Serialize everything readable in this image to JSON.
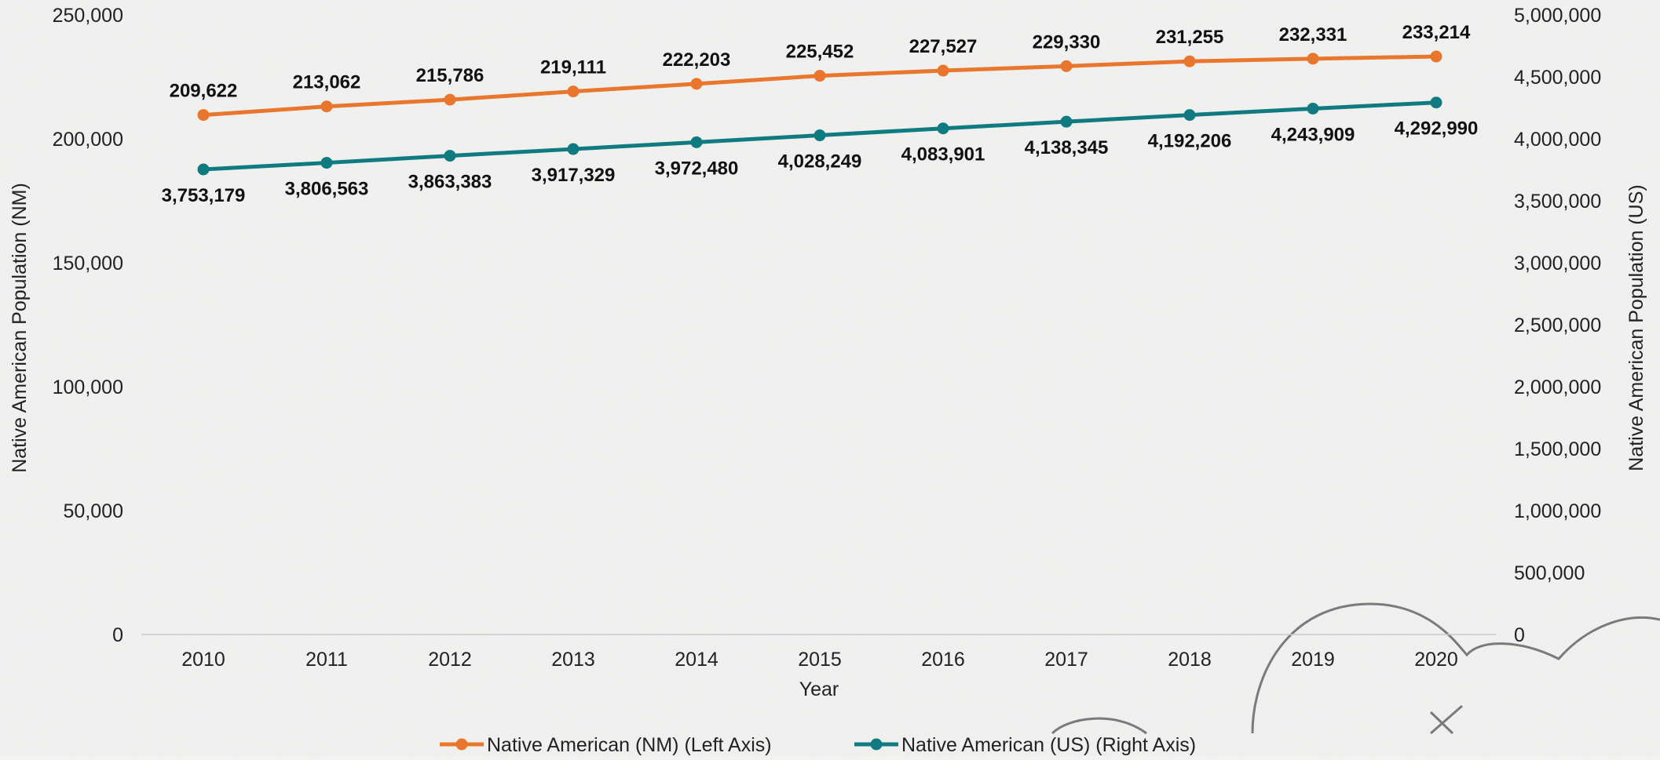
{
  "chart_data": {
    "type": "line",
    "x": [
      "2010",
      "2011",
      "2012",
      "2013",
      "2014",
      "2015",
      "2016",
      "2017",
      "2018",
      "2019",
      "2020"
    ],
    "xlabel": "Year",
    "ylabel_left": "Native American Population (NM)",
    "ylabel_right": "Native American Population (US)",
    "ylim_left": [
      0,
      250000
    ],
    "ylim_right": [
      0,
      5000000
    ],
    "yticks_left": [
      "0",
      "50,000",
      "100,000",
      "150,000",
      "200,000",
      "250,000"
    ],
    "yticks_right": [
      "0",
      "500,000",
      "1,000,000",
      "1,500,000",
      "2,000,000",
      "2,500,000",
      "3,000,000",
      "3,500,000",
      "4,000,000",
      "4,500,000",
      "5,000,000"
    ],
    "grid": false,
    "legend_position": "bottom",
    "series": [
      {
        "name": "Native American (NM) (Left Axis)",
        "axis": "left",
        "color": "#e8762c",
        "values": [
          209622,
          213062,
          215786,
          219111,
          222203,
          225452,
          227527,
          229330,
          231255,
          232331,
          233214
        ],
        "labels": [
          "209,622",
          "213,062",
          "215,786",
          "219,111",
          "222,203",
          "225,452",
          "227,527",
          "229,330",
          "231,255",
          "232,331",
          "233,214"
        ]
      },
      {
        "name": "Native American (US) (Right Axis)",
        "axis": "right",
        "color": "#0f7b80",
        "values": [
          3753179,
          3806563,
          3863383,
          3917329,
          3972480,
          4028249,
          4083901,
          4138345,
          4192206,
          4243909,
          4292990
        ],
        "labels": [
          "3,753,179",
          "3,806,563",
          "3,863,383",
          "3,917,329",
          "3,972,480",
          "4,028,249",
          "4,083,901",
          "4,138,345",
          "4,192,206",
          "4,243,909",
          "4,292,990"
        ]
      }
    ]
  }
}
